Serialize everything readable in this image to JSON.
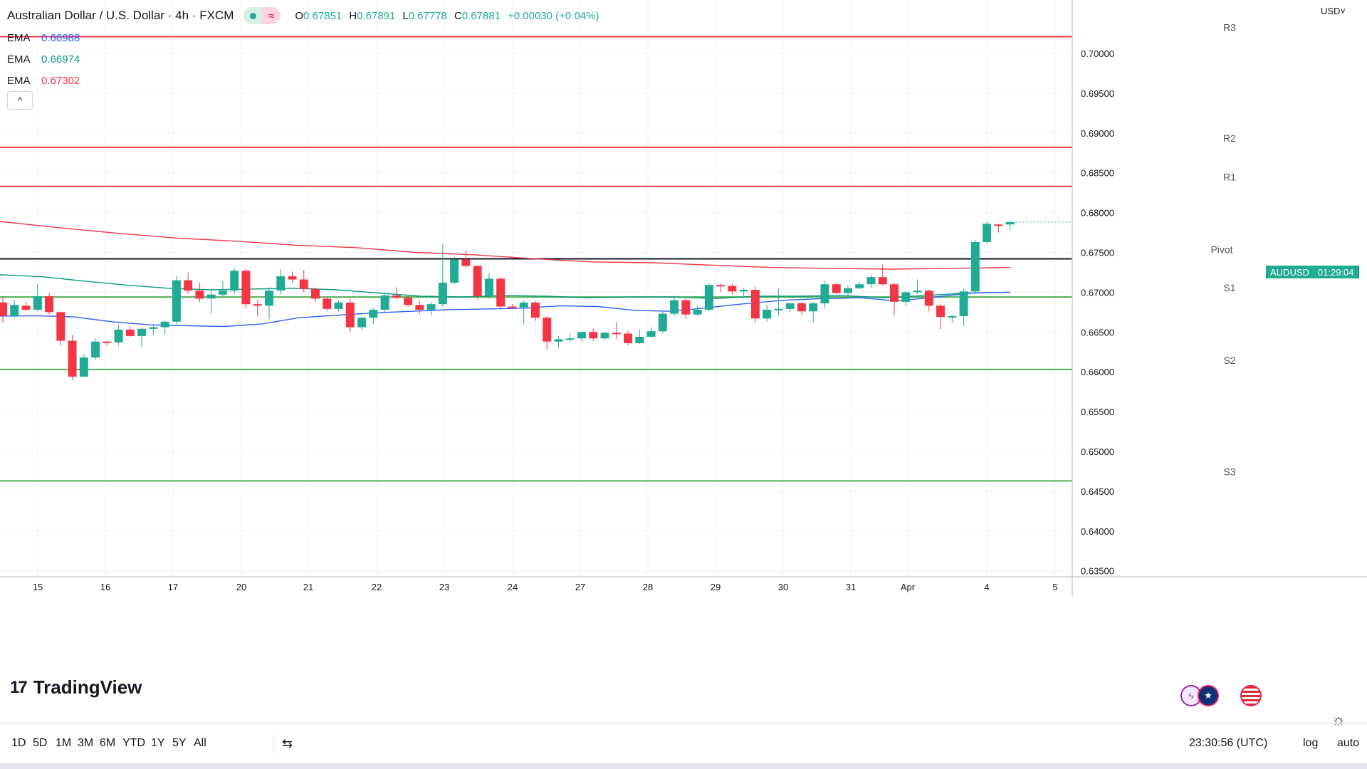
{
  "header": {
    "title": "Australian Dollar / U.S. Dollar · 4h · FXCM",
    "ohlc": [
      {
        "k": "O",
        "v": "0.67851"
      },
      {
        "k": "H",
        "v": "0.67891"
      },
      {
        "k": "L",
        "v": "0.67778"
      },
      {
        "k": "C",
        "v": "0.67881"
      },
      {
        "k": "",
        "v": "+0.00030 (+0.04%)"
      }
    ],
    "icons": [
      "market-status-dot-icon",
      "wave-icon"
    ]
  },
  "ema_legend": [
    {
      "label": "EMA",
      "value": "0.66988",
      "color": "#2962ff"
    },
    {
      "label": "EMA",
      "value": "0.66974",
      "color": "#089981"
    },
    {
      "label": "EMA",
      "value": "0.67302",
      "color": "#f23645"
    }
  ],
  "collapse_icon": "^",
  "price_axis": {
    "currency": "USD˅",
    "ticks": [
      "0.70000",
      "0.69500",
      "0.69000",
      "0.68500",
      "0.68000",
      "0.67500",
      "0.67000",
      "0.66500",
      "0.66000",
      "0.65500",
      "0.65000",
      "0.64500",
      "0.64000",
      "0.63500"
    ]
  },
  "last_price_label": {
    "symbol": "AUDUSD",
    "countdown": "01:29:04"
  },
  "logo": {
    "mark": "17",
    "text": "TradingView"
  },
  "event_icons": [
    "flash-event-icon",
    "australia-flag-icon",
    "us-flag-icon"
  ],
  "time_axis": [
    "15",
    "16",
    "17",
    "20",
    "21",
    "22",
    "23",
    "24",
    "27",
    "28",
    "29",
    "30",
    "31",
    "Apr",
    "4",
    "5"
  ],
  "toolbar": {
    "timeframes": [
      "1D",
      "5D",
      "1M",
      "3M",
      "6M",
      "YTD",
      "1Y",
      "5Y",
      "All"
    ],
    "range_icon": "calendar-range-icon",
    "clock": "23:30:56 (UTC)",
    "log": "log",
    "auto": "auto"
  },
  "colors": {
    "up": "#22ab94",
    "down": "#f23645",
    "resistance": "#f23645",
    "support": "#4caf50",
    "pivot": "#131722"
  },
  "chart_data": {
    "type": "candlestick",
    "symbol": "AUDUSD",
    "interval": "4h",
    "ylim": [
      0.6335,
      0.7045
    ],
    "candles": [
      {
        "o": 0.66872,
        "h": 0.6694,
        "l": 0.6662,
        "c": 0.667
      },
      {
        "o": 0.667,
        "h": 0.669,
        "l": 0.6668,
        "c": 0.6684
      },
      {
        "o": 0.6683,
        "h": 0.6688,
        "l": 0.6676,
        "c": 0.6678
      },
      {
        "o": 0.6678,
        "h": 0.671,
        "l": 0.6676,
        "c": 0.6695
      },
      {
        "o": 0.6695,
        "h": 0.6699,
        "l": 0.6672,
        "c": 0.6675
      },
      {
        "o": 0.6675,
        "h": 0.6676,
        "l": 0.6633,
        "c": 0.6639
      },
      {
        "o": 0.6639,
        "h": 0.6646,
        "l": 0.659,
        "c": 0.6594
      },
      {
        "o": 0.6594,
        "h": 0.6622,
        "l": 0.6593,
        "c": 0.6618
      },
      {
        "o": 0.6618,
        "h": 0.6642,
        "l": 0.6615,
        "c": 0.6638
      },
      {
        "o": 0.6638,
        "h": 0.6639,
        "l": 0.6633,
        "c": 0.6637
      },
      {
        "o": 0.6637,
        "h": 0.6659,
        "l": 0.6633,
        "c": 0.6653
      },
      {
        "o": 0.6653,
        "h": 0.6657,
        "l": 0.6644,
        "c": 0.6645
      },
      {
        "o": 0.6645,
        "h": 0.6656,
        "l": 0.6631,
        "c": 0.6654
      },
      {
        "o": 0.6654,
        "h": 0.6659,
        "l": 0.6646,
        "c": 0.6656
      },
      {
        "o": 0.6656,
        "h": 0.6664,
        "l": 0.6647,
        "c": 0.6663
      },
      {
        "o": 0.6663,
        "h": 0.672,
        "l": 0.666,
        "c": 0.6715
      },
      {
        "o": 0.6715,
        "h": 0.6725,
        "l": 0.6698,
        "c": 0.6702
      },
      {
        "o": 0.6702,
        "h": 0.6712,
        "l": 0.6688,
        "c": 0.6692
      },
      {
        "o": 0.6692,
        "h": 0.6704,
        "l": 0.6673,
        "c": 0.6697
      },
      {
        "o": 0.6697,
        "h": 0.6714,
        "l": 0.6695,
        "c": 0.6702
      },
      {
        "o": 0.6702,
        "h": 0.673,
        "l": 0.6698,
        "c": 0.6727
      },
      {
        "o": 0.6727,
        "h": 0.6729,
        "l": 0.668,
        "c": 0.6685
      },
      {
        "o": 0.6685,
        "h": 0.669,
        "l": 0.667,
        "c": 0.6683
      },
      {
        "o": 0.6683,
        "h": 0.6706,
        "l": 0.6666,
        "c": 0.6702
      },
      {
        "o": 0.6702,
        "h": 0.6729,
        "l": 0.6697,
        "c": 0.672
      },
      {
        "o": 0.672,
        "h": 0.6726,
        "l": 0.6712,
        "c": 0.6716
      },
      {
        "o": 0.6716,
        "h": 0.6728,
        "l": 0.67,
        "c": 0.6704
      },
      {
        "o": 0.6704,
        "h": 0.6706,
        "l": 0.6688,
        "c": 0.6692
      },
      {
        "o": 0.6692,
        "h": 0.6694,
        "l": 0.6676,
        "c": 0.6679
      },
      {
        "o": 0.6679,
        "h": 0.669,
        "l": 0.6676,
        "c": 0.6687
      },
      {
        "o": 0.6687,
        "h": 0.6692,
        "l": 0.665,
        "c": 0.6656
      },
      {
        "o": 0.6656,
        "h": 0.6669,
        "l": 0.6653,
        "c": 0.6668
      },
      {
        "o": 0.6668,
        "h": 0.668,
        "l": 0.666,
        "c": 0.6678
      },
      {
        "o": 0.6678,
        "h": 0.6699,
        "l": 0.6674,
        "c": 0.6696
      },
      {
        "o": 0.6696,
        "h": 0.6706,
        "l": 0.6691,
        "c": 0.6693
      },
      {
        "o": 0.6693,
        "h": 0.6695,
        "l": 0.6682,
        "c": 0.6684
      },
      {
        "o": 0.6684,
        "h": 0.6689,
        "l": 0.6673,
        "c": 0.6678
      },
      {
        "o": 0.6678,
        "h": 0.6688,
        "l": 0.6671,
        "c": 0.6685
      },
      {
        "o": 0.6685,
        "h": 0.676,
        "l": 0.6682,
        "c": 0.6712
      },
      {
        "o": 0.6712,
        "h": 0.6745,
        "l": 0.671,
        "c": 0.6741
      },
      {
        "o": 0.6741,
        "h": 0.6753,
        "l": 0.673,
        "c": 0.6733
      },
      {
        "o": 0.6733,
        "h": 0.6734,
        "l": 0.6691,
        "c": 0.6695
      },
      {
        "o": 0.6695,
        "h": 0.6724,
        "l": 0.6692,
        "c": 0.6717
      },
      {
        "o": 0.6717,
        "h": 0.6719,
        "l": 0.6678,
        "c": 0.6682
      },
      {
        "o": 0.6682,
        "h": 0.6685,
        "l": 0.6679,
        "c": 0.6681
      },
      {
        "o": 0.6681,
        "h": 0.669,
        "l": 0.666,
        "c": 0.6687
      },
      {
        "o": 0.6687,
        "h": 0.6689,
        "l": 0.6664,
        "c": 0.6668
      },
      {
        "o": 0.6668,
        "h": 0.667,
        "l": 0.6628,
        "c": 0.6638
      },
      {
        "o": 0.6638,
        "h": 0.6645,
        "l": 0.6631,
        "c": 0.6641
      },
      {
        "o": 0.6641,
        "h": 0.6648,
        "l": 0.6638,
        "c": 0.6642
      },
      {
        "o": 0.6642,
        "h": 0.665,
        "l": 0.6638,
        "c": 0.665
      },
      {
        "o": 0.665,
        "h": 0.6654,
        "l": 0.6639,
        "c": 0.6642
      },
      {
        "o": 0.6642,
        "h": 0.665,
        "l": 0.664,
        "c": 0.6649
      },
      {
        "o": 0.6649,
        "h": 0.6663,
        "l": 0.6641,
        "c": 0.6648
      },
      {
        "o": 0.6648,
        "h": 0.6652,
        "l": 0.6633,
        "c": 0.6636
      },
      {
        "o": 0.6636,
        "h": 0.6653,
        "l": 0.6635,
        "c": 0.6644
      },
      {
        "o": 0.6644,
        "h": 0.6656,
        "l": 0.6643,
        "c": 0.6651
      },
      {
        "o": 0.6651,
        "h": 0.6676,
        "l": 0.6648,
        "c": 0.6673
      },
      {
        "o": 0.6673,
        "h": 0.6696,
        "l": 0.667,
        "c": 0.669
      },
      {
        "o": 0.669,
        "h": 0.6692,
        "l": 0.6667,
        "c": 0.6672
      },
      {
        "o": 0.6672,
        "h": 0.6683,
        "l": 0.667,
        "c": 0.6678
      },
      {
        "o": 0.6678,
        "h": 0.6711,
        "l": 0.6676,
        "c": 0.6709
      },
      {
        "o": 0.6709,
        "h": 0.6711,
        "l": 0.67,
        "c": 0.6708
      },
      {
        "o": 0.6708,
        "h": 0.6711,
        "l": 0.6697,
        "c": 0.6701
      },
      {
        "o": 0.6701,
        "h": 0.6705,
        "l": 0.6695,
        "c": 0.6703
      },
      {
        "o": 0.6703,
        "h": 0.6707,
        "l": 0.6662,
        "c": 0.6667
      },
      {
        "o": 0.6667,
        "h": 0.6684,
        "l": 0.6663,
        "c": 0.6678
      },
      {
        "o": 0.6678,
        "h": 0.6704,
        "l": 0.6671,
        "c": 0.6679
      },
      {
        "o": 0.6679,
        "h": 0.6687,
        "l": 0.6675,
        "c": 0.6686
      },
      {
        "o": 0.6686,
        "h": 0.6688,
        "l": 0.6672,
        "c": 0.6676
      },
      {
        "o": 0.6676,
        "h": 0.6688,
        "l": 0.6662,
        "c": 0.6686
      },
      {
        "o": 0.6686,
        "h": 0.6714,
        "l": 0.668,
        "c": 0.671
      },
      {
        "o": 0.671,
        "h": 0.6712,
        "l": 0.6698,
        "c": 0.6699
      },
      {
        "o": 0.6699,
        "h": 0.6708,
        "l": 0.6696,
        "c": 0.6705
      },
      {
        "o": 0.6705,
        "h": 0.6713,
        "l": 0.6704,
        "c": 0.671
      },
      {
        "o": 0.671,
        "h": 0.6722,
        "l": 0.6705,
        "c": 0.6719
      },
      {
        "o": 0.6719,
        "h": 0.6735,
        "l": 0.6709,
        "c": 0.671
      },
      {
        "o": 0.671,
        "h": 0.6712,
        "l": 0.6671,
        "c": 0.6688
      },
      {
        "o": 0.6688,
        "h": 0.6701,
        "l": 0.6683,
        "c": 0.67
      },
      {
        "o": 0.67,
        "h": 0.6716,
        "l": 0.6698,
        "c": 0.6702
      },
      {
        "o": 0.6702,
        "h": 0.6703,
        "l": 0.6676,
        "c": 0.6683
      },
      {
        "o": 0.6683,
        "h": 0.6686,
        "l": 0.6653,
        "c": 0.6669
      },
      {
        "o": 0.6669,
        "h": 0.6672,
        "l": 0.6662,
        "c": 0.667
      },
      {
        "o": 0.667,
        "h": 0.6704,
        "l": 0.6658,
        "c": 0.6701
      },
      {
        "o": 0.6701,
        "h": 0.6766,
        "l": 0.6699,
        "c": 0.6763
      },
      {
        "o": 0.6763,
        "h": 0.6788,
        "l": 0.6762,
        "c": 0.6786
      },
      {
        "o": 0.67851,
        "h": 0.6786,
        "l": 0.6775,
        "c": 0.6785
      },
      {
        "o": 0.67851,
        "h": 0.67891,
        "l": 0.67778,
        "c": 0.67881
      }
    ],
    "ema_blue": [
      0.667,
      0.66705,
      0.6669,
      0.6663,
      0.6659,
      0.6658,
      0.6657,
      0.666,
      0.6668,
      0.6671,
      0.6674,
      0.6676,
      0.6678,
      0.6679,
      0.668,
      0.6683,
      0.6682,
      0.6677,
      0.6676,
      0.6681,
      0.6686,
      0.669,
      0.6692,
      0.6693,
      0.6689,
      0.6694,
      0.6699,
      0.67
    ],
    "ema_green": [
      0.6722,
      0.67195,
      0.6714,
      0.6709,
      0.6705,
      0.6703,
      0.6704,
      0.6705,
      0.6703,
      0.6699,
      0.6695,
      0.6694,
      0.6696,
      0.6695,
      0.6693,
      0.6694,
      0.6694,
      0.6692,
      0.6695,
      0.6695,
      0.6696,
      0.6693,
      0.6696,
      0.6699,
      0.67
    ],
    "ema_red": [
      0.6789,
      0.6781,
      0.6774,
      0.6768,
      0.6764,
      0.6759,
      0.6756,
      0.675,
      0.6747,
      0.6742,
      0.6738,
      0.6737,
      0.6734,
      0.6731,
      0.673,
      0.6729,
      0.673,
      0.6731
    ],
    "levels": [
      {
        "label": "R3",
        "value": 0.7021,
        "type": "resistance"
      },
      {
        "label": "R2",
        "value": 0.6882,
        "type": "resistance"
      },
      {
        "label": "R1",
        "value": 0.6833,
        "type": "resistance"
      },
      {
        "label": "Pivot",
        "value": 0.6742,
        "type": "pivot"
      },
      {
        "label": "S1",
        "value": 0.6694,
        "type": "support"
      },
      {
        "label": "S2",
        "value": 0.6603,
        "type": "support"
      },
      {
        "label": "S3",
        "value": 0.6463,
        "type": "support"
      }
    ],
    "last_price": 0.67881
  }
}
